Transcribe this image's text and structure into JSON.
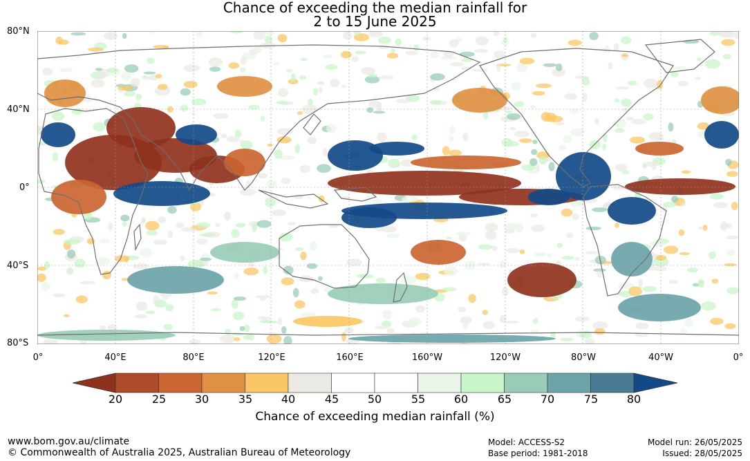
{
  "title": {
    "line1": "Chance of exceeding the median rainfall for",
    "line2": "2 to 15 June 2025"
  },
  "map": {
    "lat_labels": [
      "80°N",
      "40°N",
      "0°",
      "40°S",
      "80°S"
    ],
    "lon_labels": [
      "0°",
      "40°E",
      "80°E",
      "120°E",
      "160°E",
      "160°W",
      "120°W",
      "80°W",
      "40°W",
      "0°"
    ],
    "colors": {
      "land_outline": "#6e6e6e",
      "grid": "#999999"
    }
  },
  "colorbar": {
    "ticks": [
      "20",
      "25",
      "30",
      "35",
      "40",
      "45",
      "50",
      "55",
      "60",
      "65",
      "70",
      "75",
      "80"
    ],
    "colors": [
      "#8f321d",
      "#ad4a27",
      "#cb6531",
      "#e09042",
      "#fbc766",
      "#ebe9e4",
      "#ffffff",
      "#ffffff",
      "#e9f5e8",
      "#c8f5c8",
      "#99ccb7",
      "#6da4a9",
      "#4a7b95",
      "#124a88"
    ],
    "label": "Chance of exceeding median rainfall (%)"
  },
  "footer": {
    "url": "www.bom.gov.au/climate",
    "copyright": "© Commonwealth of Australia 2025, Australian Bureau of Meteorology",
    "model": "Model: ACCESS-S2",
    "base_period": "Base period: 1981-2018",
    "model_run": "Model run: 26/05/2025",
    "issued": "Issued: 28/05/2025"
  }
}
